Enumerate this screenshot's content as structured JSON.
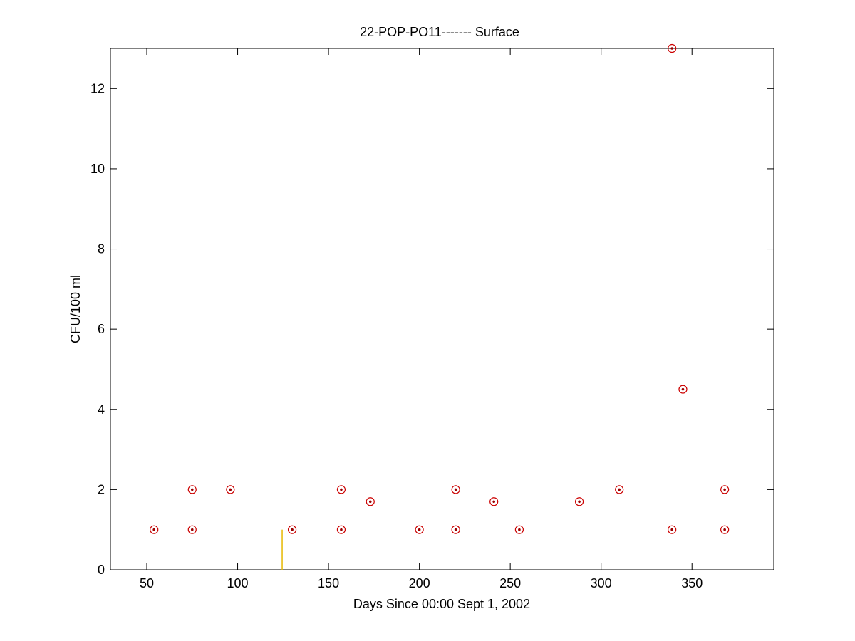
{
  "chart_data": {
    "type": "scatter",
    "title": "22-POP-PO11------- Surface",
    "xlabel": "Days Since 00:00 Sept 1, 2002",
    "ylabel": "CFU/100 ml",
    "xlim": [
      30,
      395
    ],
    "ylim": [
      0,
      13
    ],
    "x_ticks": [
      50,
      100,
      150,
      200,
      250,
      300,
      350
    ],
    "y_ticks": [
      0,
      2,
      4,
      6,
      8,
      10,
      12
    ],
    "grid": false,
    "legend": "none",
    "marker_color": "#cc0000",
    "marker_center_color": "#990000",
    "event_line_color": "#e6b800",
    "event_line": {
      "x": 124.5,
      "y": 1
    },
    "points": [
      {
        "x": 54,
        "y": 1
      },
      {
        "x": 75,
        "y": 2
      },
      {
        "x": 75,
        "y": 1
      },
      {
        "x": 96,
        "y": 2
      },
      {
        "x": 130,
        "y": 1
      },
      {
        "x": 157,
        "y": 2
      },
      {
        "x": 157,
        "y": 1
      },
      {
        "x": 173,
        "y": 1.7
      },
      {
        "x": 200,
        "y": 1
      },
      {
        "x": 220,
        "y": 2
      },
      {
        "x": 220,
        "y": 1
      },
      {
        "x": 241,
        "y": 1.7
      },
      {
        "x": 255,
        "y": 1
      },
      {
        "x": 288,
        "y": 1.7
      },
      {
        "x": 310,
        "y": 2
      },
      {
        "x": 339,
        "y": 13
      },
      {
        "x": 339,
        "y": 1
      },
      {
        "x": 345,
        "y": 4.5
      },
      {
        "x": 368,
        "y": 2
      },
      {
        "x": 368,
        "y": 1
      }
    ]
  }
}
